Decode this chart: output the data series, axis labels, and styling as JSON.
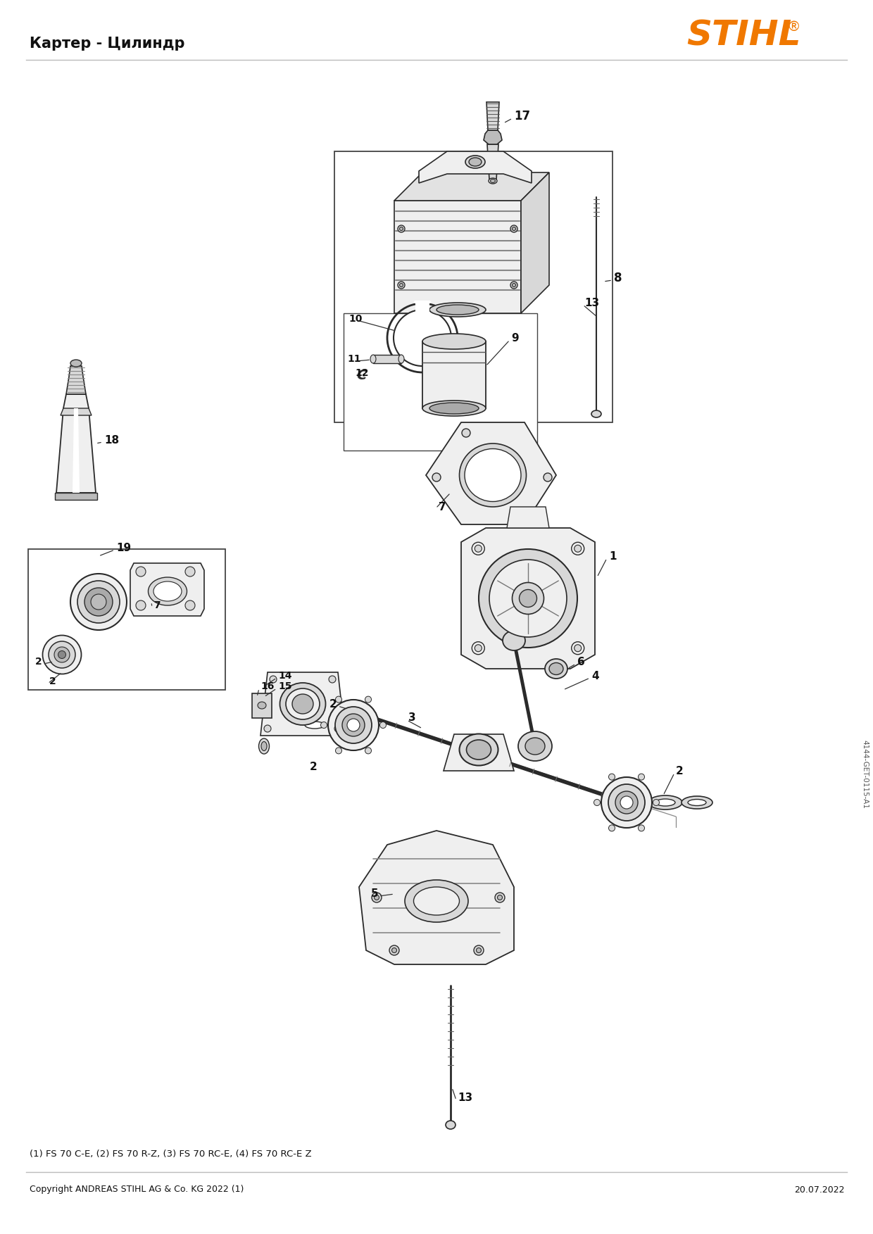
{
  "title": "Картер - Цилиндр",
  "logo_text": "STIHL",
  "logo_color": "#F07800",
  "bg_color": "#FFFFFF",
  "footer_left": "Copyright ANDREAS STIHL AG & Co. KG 2022 (1)",
  "footer_right": "20.07.2022",
  "footnote": "(1) FS 70 C-E, (2) FS 70 R-Z, (3) FS 70 RC-E, (4) FS 70 RC-E Z",
  "diagram_code": "4144-GET-0115-A1",
  "line_color": "#2a2a2a",
  "fill_light": "#EFEFEF",
  "fill_mid": "#D8D8D8",
  "fill_dark": "#BBBBBB"
}
